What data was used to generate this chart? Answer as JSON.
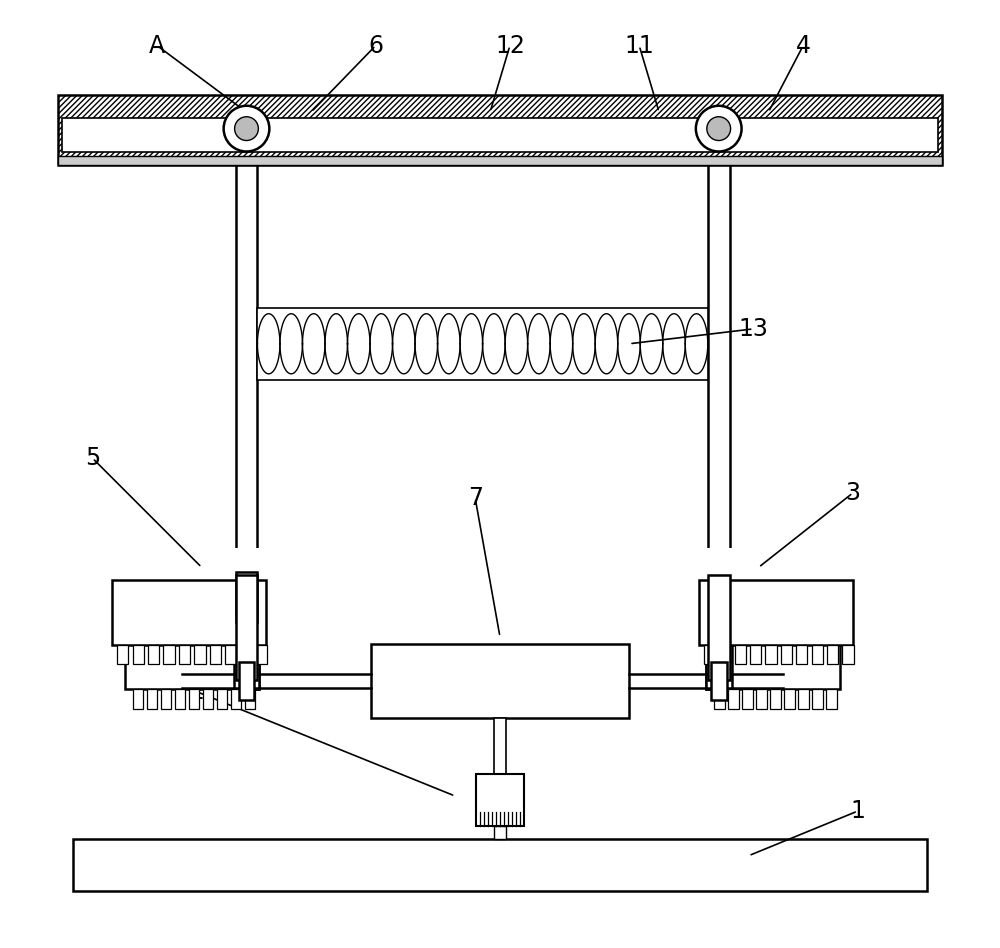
{
  "bg_color": "#ffffff",
  "line_color": "#000000",
  "fig_width": 10.0,
  "fig_height": 9.48,
  "label_fontsize": 17
}
